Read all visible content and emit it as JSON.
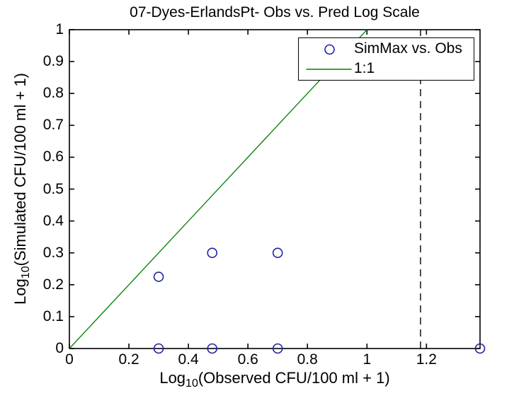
{
  "chart_data": {
    "type": "scatter",
    "title": "07-Dyes-ErlandsPt- Obs vs. Pred Log Scale",
    "xlabel": {
      "prefix": "Log",
      "sub": "10",
      "rest": "(Observed CFU/100 ml + 1)"
    },
    "ylabel": {
      "prefix": "Log",
      "sub": "10",
      "rest": "(Simulated CFU/100 ml + 1)"
    },
    "xlim": [
      0,
      1.38
    ],
    "ylim": [
      0,
      1
    ],
    "x_ticks": [
      "0",
      "0.2",
      "0.4",
      "0.6",
      "0.8",
      "1",
      "1.2"
    ],
    "y_ticks": [
      "0",
      "0.1",
      "0.2",
      "0.3",
      "0.4",
      "0.5",
      "0.6",
      "0.7",
      "0.8",
      "0.9",
      "1"
    ],
    "grid": false,
    "axis_color": "#000000",
    "background_color": "#ffffff",
    "legend": {
      "position": "top-right",
      "entries": [
        {
          "label": "SimMax vs. Obs",
          "marker": "circle",
          "color": "#2222A2"
        },
        {
          "label": "1:1",
          "marker": "line",
          "color": "#007F00"
        }
      ]
    },
    "series": [
      {
        "name": "SimMax vs. Obs",
        "type": "scatter",
        "marker": "open-circle",
        "color": "#2222A2",
        "points": [
          [
            0.3,
            0.225
          ],
          [
            0.48,
            0.3
          ],
          [
            0.7,
            0.3
          ],
          [
            0.3,
            0
          ],
          [
            0.48,
            0
          ],
          [
            0.7,
            0
          ],
          [
            1.38,
            0
          ]
        ]
      },
      {
        "name": "1:1",
        "type": "line",
        "color": "#007F00",
        "points": [
          [
            0,
            0
          ],
          [
            1,
            1
          ]
        ]
      }
    ],
    "annotations": [
      {
        "type": "vline",
        "x": 1.18,
        "style": "dashed",
        "color": "#000000",
        "y_span": [
          0,
          1
        ]
      }
    ]
  }
}
